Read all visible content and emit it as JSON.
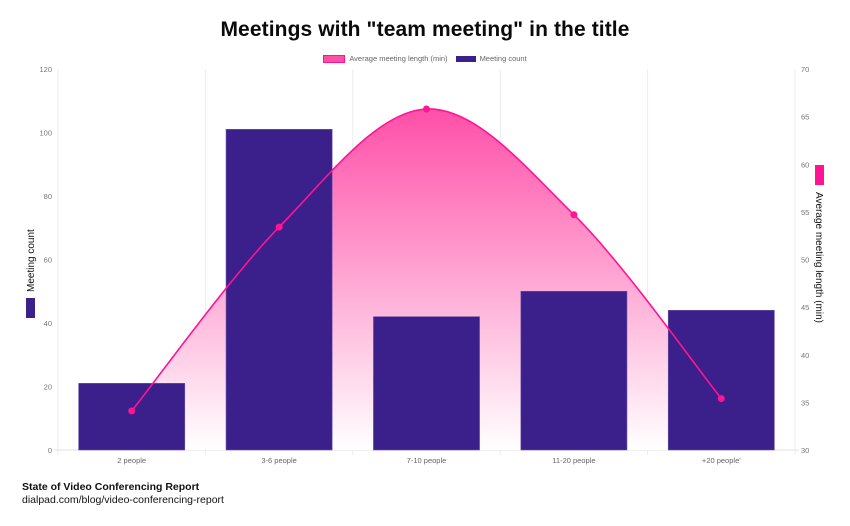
{
  "title": "Meetings with \"team meeting\" in the title",
  "legend": [
    {
      "label": "Average meeting length (min)",
      "color": "#ff1493"
    },
    {
      "label": "Meeting count",
      "color": "#3b1f8a"
    }
  ],
  "footer": {
    "source_title": "State of Video Conferencing Report",
    "source_url": "dialpad.com/blog/video-conferencing-report"
  },
  "chart_data": {
    "type": "bar",
    "title": "Meetings with \"team meeting\" in the title",
    "categories": [
      "2 people",
      "3-6 people",
      "7-10 people",
      "11-20 people",
      "+20 people'"
    ],
    "series": [
      {
        "name": "Meeting count",
        "type": "bar",
        "axis": "left",
        "color": "#3b1f8a",
        "values": [
          21,
          101,
          42,
          50,
          44
        ]
      },
      {
        "name": "Average meeting length (min)",
        "type": "line",
        "axis": "right",
        "color": "#ff1493",
        "fill": "gradient",
        "values": [
          34.1,
          53.4,
          65.8,
          54.7,
          35.4
        ]
      }
    ],
    "xlabel": "",
    "ylabel": "Meeting count",
    "ylabel_right": "Average meeting length (min)",
    "ylim": [
      0,
      120
    ],
    "ylim_right": [
      30,
      70
    ],
    "yticks": [
      0,
      20,
      40,
      60,
      80,
      100,
      120
    ],
    "yticks_right": [
      30,
      35,
      40,
      45,
      50,
      55,
      60,
      65,
      70
    ],
    "grid": true,
    "legend_position": "top"
  }
}
